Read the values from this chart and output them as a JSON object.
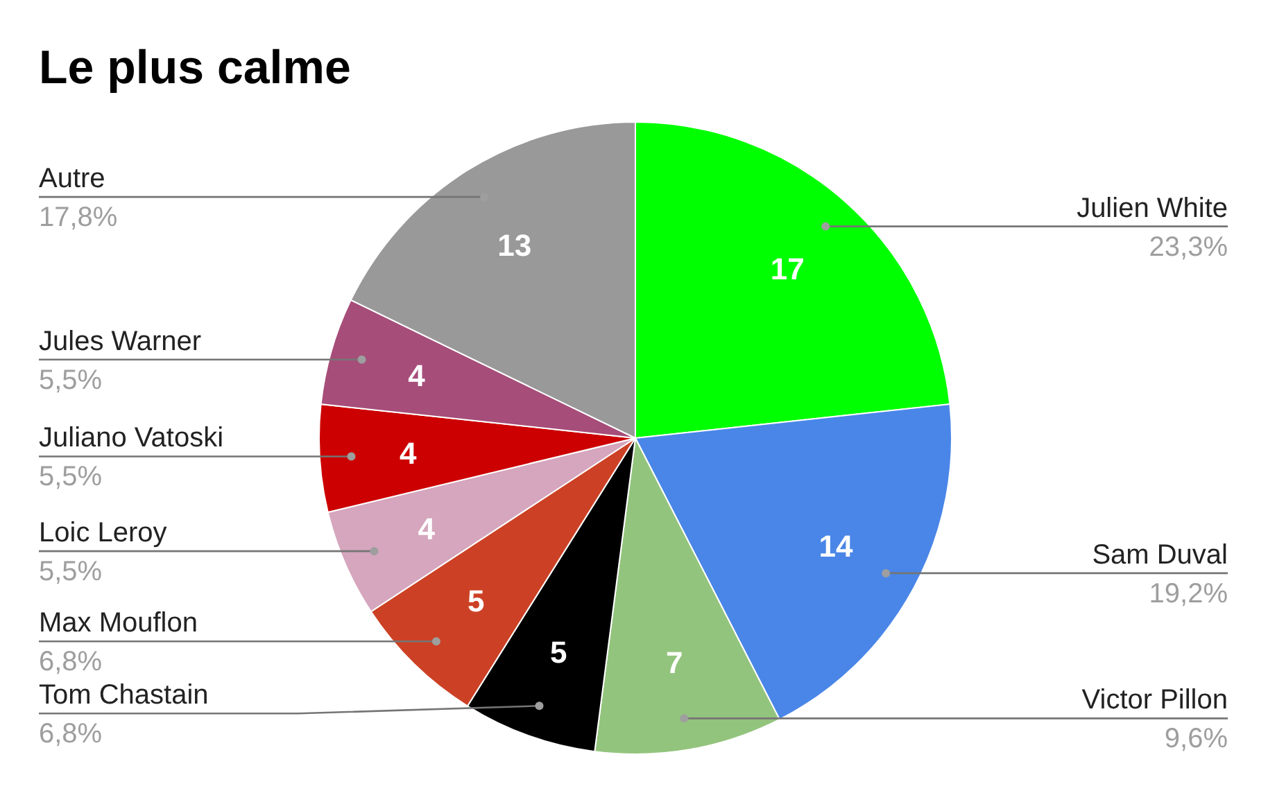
{
  "chart_data": {
    "type": "pie",
    "title": "Le plus calme",
    "categories": [
      "Julien White",
      "Sam Duval",
      "Victor Pillon",
      "Tom Chastain",
      "Max Mouflon",
      "Loic Leroy",
      "Juliano Vatoski",
      "Jules Warner",
      "Autre"
    ],
    "values": [
      17,
      14,
      7,
      5,
      5,
      4,
      4,
      4,
      13
    ],
    "colors": [
      "#00ff00",
      "#4a86e8",
      "#93c47d",
      "#000000",
      "#cc4125",
      "#d5a6bd",
      "#cc0000",
      "#a64d79",
      "#999999"
    ],
    "annotations": [
      {
        "text": "23,3%",
        "x": "Julien White"
      },
      {
        "text": "19,2%",
        "x": "Sam Duval"
      },
      {
        "text": "9,6%",
        "x": "Victor Pillon"
      },
      {
        "text": "6,8%",
        "x": "Tom Chastain"
      },
      {
        "text": "6,8%",
        "x": "Max Mouflon"
      },
      {
        "text": "5,5%",
        "x": "Loic Leroy"
      },
      {
        "text": "5,5%",
        "x": "Juliano Vatoski"
      },
      {
        "text": "5,5%",
        "x": "Jules Warner"
      },
      {
        "text": "17,8%",
        "x": "Autre"
      }
    ],
    "data_labels": true
  }
}
